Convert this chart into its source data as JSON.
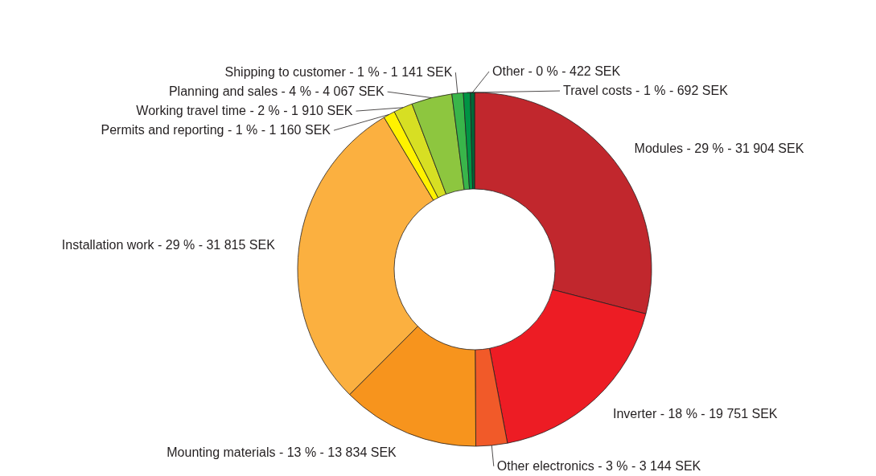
{
  "chart_data": {
    "type": "donut",
    "categories": [
      "Modules - 29 %",
      "Inverter - 18 %",
      "Other electronics - 3 %",
      "Mounting materials - 13 %",
      "Installation work - 29 %",
      "Permits and reporting - 1 %",
      "Working travel time - 2 %",
      "Planning and sales - 4 %",
      "Shipping to customer - 1 %",
      "Travel costs - 1 %",
      "Other - 0 %"
    ],
    "values": [
      31904,
      19751,
      3144,
      13834,
      31815,
      1160,
      1910,
      4067,
      1141,
      692,
      422
    ],
    "value_labels": [
      "31 904 SEK",
      "19 751 SEK",
      "3 144 SEK",
      "13 834 SEK",
      "31 815 SEK",
      "1 160 SEK",
      "1 910 SEK",
      "4 067 SEK",
      "1 141 SEK",
      "692 SEK",
      "422 SEK"
    ],
    "colors": [
      "#c1272d",
      "#ed1c24",
      "#f15a29",
      "#f7941d",
      "#fbb040",
      "#fff200",
      "#d7df23",
      "#8dc63f",
      "#39b54a",
      "#009444",
      "#006838"
    ]
  }
}
